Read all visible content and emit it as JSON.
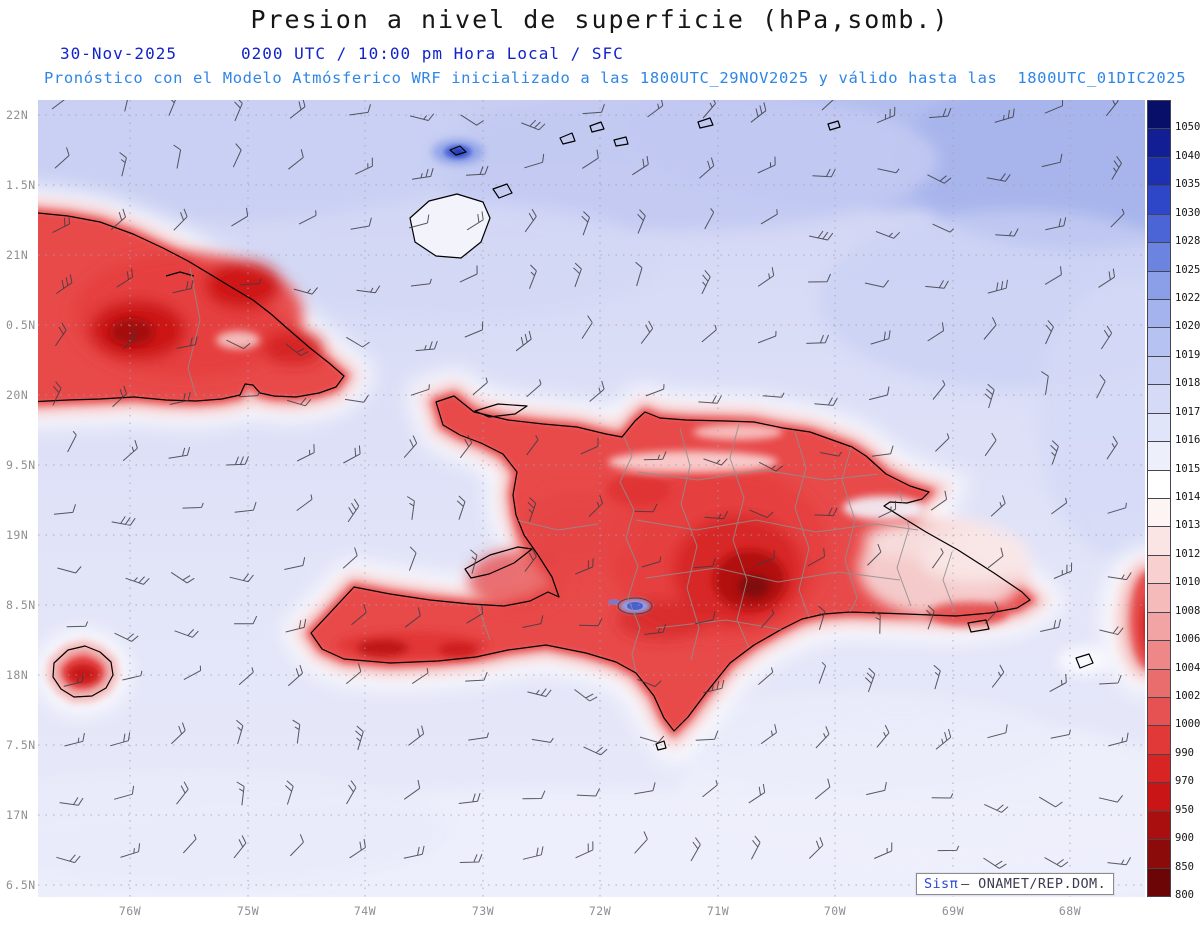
{
  "header": {
    "title": "Presion a nivel de superficie (hPa,somb.)",
    "date": "30-Nov-2025",
    "valid": "0200 UTC / 10:00 pm Hora Local / SFC",
    "model": "Pronóstico con el Modelo Atmósferico WRF inicializado a las 1800UTC_29NOV2025 y válido hasta las  1800UTC_01DIC2025"
  },
  "map": {
    "y_axis": [
      "22N",
      "1.5N",
      "21N",
      "0.5N",
      "20N",
      "9.5N",
      "19N",
      "8.5N",
      "18N",
      "7.5N",
      "17N",
      "6.5N"
    ],
    "x_axis": [
      "76W",
      "75W",
      "74W",
      "73W",
      "72W",
      "71W",
      "70W",
      "69W",
      "68W"
    ]
  },
  "colorbar": {
    "values": [
      1050,
      1040,
      1035,
      1030,
      1028,
      1025,
      1022,
      1020,
      1019,
      1018,
      1017,
      1016,
      1015,
      1014,
      1013,
      1012,
      1010,
      1008,
      1006,
      1004,
      1002,
      1000,
      990,
      970,
      950,
      900,
      850,
      800
    ],
    "colors": [
      "#070f68",
      "#111e94",
      "#1c30b2",
      "#2e47c8",
      "#4b64d6",
      "#6b84e0",
      "#8b9ee8",
      "#a4b2ee",
      "#b6c2f2",
      "#c7cff5",
      "#d5dbf7",
      "#e1e5f9",
      "#edeffb",
      "#ffffff",
      "#fdf4f4",
      "#fbe4e4",
      "#f8d0d0",
      "#f5baba",
      "#f2a3a3",
      "#ee8888",
      "#ea6d6d",
      "#e65151",
      "#e13838",
      "#d92424",
      "#c91515",
      "#aa0f0f",
      "#8b0a0a",
      "#6c0505"
    ]
  },
  "watermark": {
    "brand": "Sisπ",
    "rest": "— ONAMET/REP.DOM."
  },
  "palette": {
    "title_text": "#161616",
    "date_blue": "#1223cc",
    "model_blue": "#2f86e6",
    "axis_gray": "#8f8f93",
    "ocean_base": "#dfe2f6",
    "low_pressure_red": "#e65151",
    "high_pressure_blue": "#a4b2ee"
  }
}
